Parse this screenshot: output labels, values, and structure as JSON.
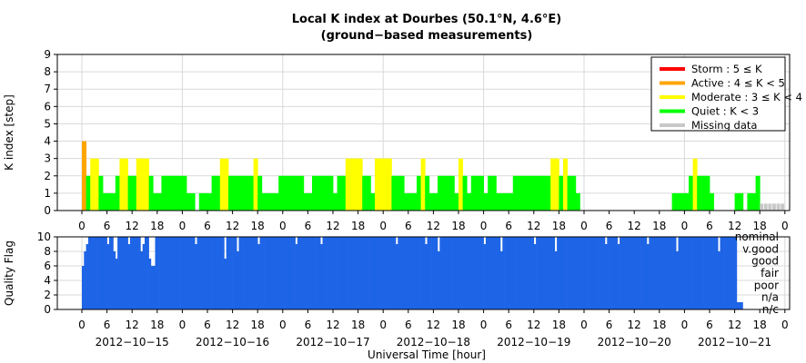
{
  "chart_data": [
    {
      "type": "bar",
      "title": "Local K index at Dourbes (50.1°N, 4.6°E)",
      "subtitle": "(ground−based measurements)",
      "ylabel": "K index [step]",
      "ylim": [
        0,
        9
      ],
      "yticks": [
        "0",
        "1",
        "2",
        "3",
        "4",
        "5",
        "6",
        "7",
        "8",
        "9"
      ],
      "x_hour_ticks": [
        "0",
        "6",
        "12",
        "18"
      ],
      "x_last_tick": "0",
      "dates": [
        "2012−10−15",
        "2012−10−16",
        "2012−10−17",
        "2012−10−18",
        "2012−10−19",
        "2012−10−20",
        "2012−10−21"
      ],
      "grid": true,
      "legend_position": "top-right",
      "legend": [
        {
          "label": "Storm : 5 ≤ K",
          "color": "#ff0000"
        },
        {
          "label": "Active : 4 ≤ K < 5",
          "color": "#ffa500"
        },
        {
          "label": "Moderate : 3 ≤ K < 4",
          "color": "#ffff00"
        },
        {
          "label": "Quiet : K < 3",
          "color": "#00ff00"
        },
        {
          "label": "Missing data",
          "color": "#c8c8c8"
        }
      ],
      "bar_width_hours": 1,
      "segments": [
        {
          "start_hour": 0,
          "values": [
            4,
            2,
            3,
            3,
            2,
            1,
            1,
            1,
            2,
            3,
            3,
            2,
            2,
            3,
            3,
            3,
            2,
            1,
            1,
            2,
            2,
            2,
            2,
            2,
            2,
            1,
            1,
            0,
            1,
            1,
            1,
            2,
            2,
            3,
            3,
            2,
            2,
            2,
            2,
            2,
            2,
            3,
            2,
            1,
            1,
            1,
            1,
            2,
            2,
            2,
            2,
            2,
            2,
            1,
            1,
            2,
            2,
            2,
            2,
            2,
            1,
            2,
            2,
            3,
            3,
            3,
            3,
            2,
            2,
            1,
            3,
            3,
            3,
            3,
            2,
            2,
            2,
            1,
            1,
            1,
            2,
            3,
            2,
            1,
            1,
            2,
            2,
            2,
            2,
            1,
            3,
            2,
            1,
            2,
            2,
            2,
            1,
            2,
            2,
            1,
            1,
            1,
            1,
            2,
            2,
            2,
            2,
            2,
            2,
            2,
            2,
            2,
            3,
            3,
            2,
            3,
            2,
            2,
            1,
            0
          ]
        },
        {
          "start_hour": 141,
          "values": [
            1,
            1,
            1,
            1,
            2,
            3,
            2,
            2,
            2,
            1
          ]
        },
        {
          "start_hour": 156,
          "values": [
            1,
            1,
            0,
            1,
            1,
            2
          ]
        }
      ],
      "missing_from_hour": 162,
      "missing_to_hour": 168,
      "missing_value": 0.4
    },
    {
      "type": "bar",
      "ylabel": "Quality Flag",
      "ylim": [
        0,
        10
      ],
      "yticks": [
        "0",
        "2",
        "4",
        "6",
        "8",
        "10"
      ],
      "quality_labels": [
        "nominal",
        "v.good",
        "good",
        "fair",
        "poor",
        "n/a",
        "n/c"
      ],
      "xlabel": "Universal Time [hour]",
      "color": "#1e64e6",
      "time_step_hours": 0.5,
      "full_value": 10,
      "end_hour": 156.5,
      "end_values": [
        1,
        0
      ],
      "dips": [
        {
          "hour": 0,
          "values": [
            6,
            8,
            9
          ]
        },
        {
          "hour": 6,
          "values": [
            9
          ]
        },
        {
          "hour": 7.5,
          "values": [
            8,
            7
          ]
        },
        {
          "hour": 11,
          "values": [
            9
          ]
        },
        {
          "hour": 14,
          "values": [
            8,
            9
          ]
        },
        {
          "hour": 16,
          "values": [
            7,
            6,
            6
          ]
        },
        {
          "hour": 27,
          "values": [
            9
          ]
        },
        {
          "hour": 34,
          "values": [
            7
          ]
        },
        {
          "hour": 37,
          "values": [
            8
          ]
        },
        {
          "hour": 42,
          "values": [
            9
          ]
        },
        {
          "hour": 51,
          "values": [
            9
          ]
        },
        {
          "hour": 57,
          "values": [
            9
          ]
        },
        {
          "hour": 75,
          "values": [
            9
          ]
        },
        {
          "hour": 82,
          "values": [
            9
          ]
        },
        {
          "hour": 85,
          "values": [
            8
          ]
        },
        {
          "hour": 96,
          "values": [
            9
          ]
        },
        {
          "hour": 100,
          "values": [
            8
          ]
        },
        {
          "hour": 108,
          "values": [
            9
          ]
        },
        {
          "hour": 113,
          "values": [
            8
          ]
        },
        {
          "hour": 125,
          "values": [
            9
          ]
        },
        {
          "hour": 128,
          "values": [
            9
          ]
        },
        {
          "hour": 135,
          "values": [
            9
          ]
        },
        {
          "hour": 142,
          "values": [
            8
          ]
        },
        {
          "hour": 152,
          "values": [
            8
          ]
        }
      ]
    }
  ]
}
